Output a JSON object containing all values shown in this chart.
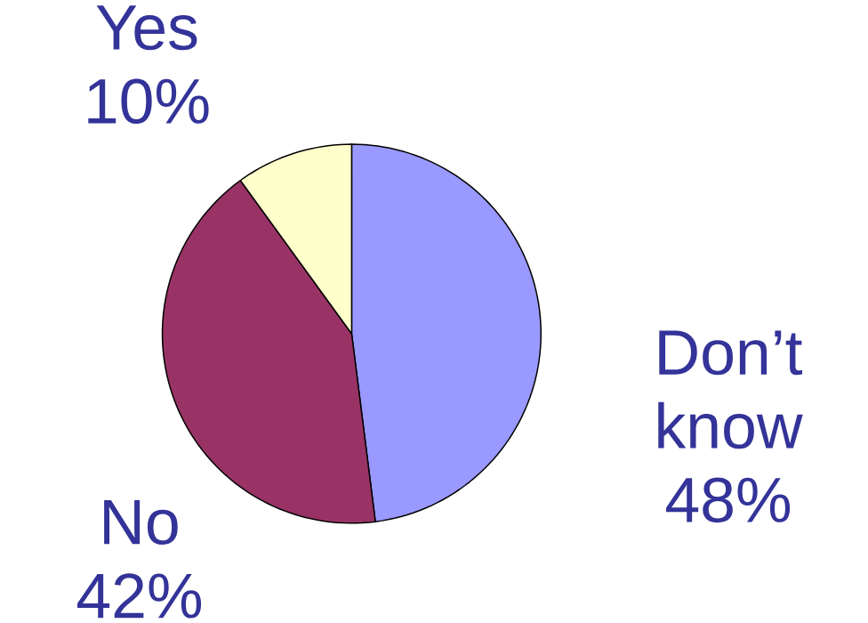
{
  "chart_data": {
    "type": "pie",
    "categories": [
      "Don’t know",
      "No",
      "Yes"
    ],
    "values": [
      48,
      42,
      10
    ],
    "value_labels": [
      "48%",
      "42%",
      "10%"
    ],
    "colors": [
      "#9999ff",
      "#993366",
      "#ffffcc"
    ]
  }
}
